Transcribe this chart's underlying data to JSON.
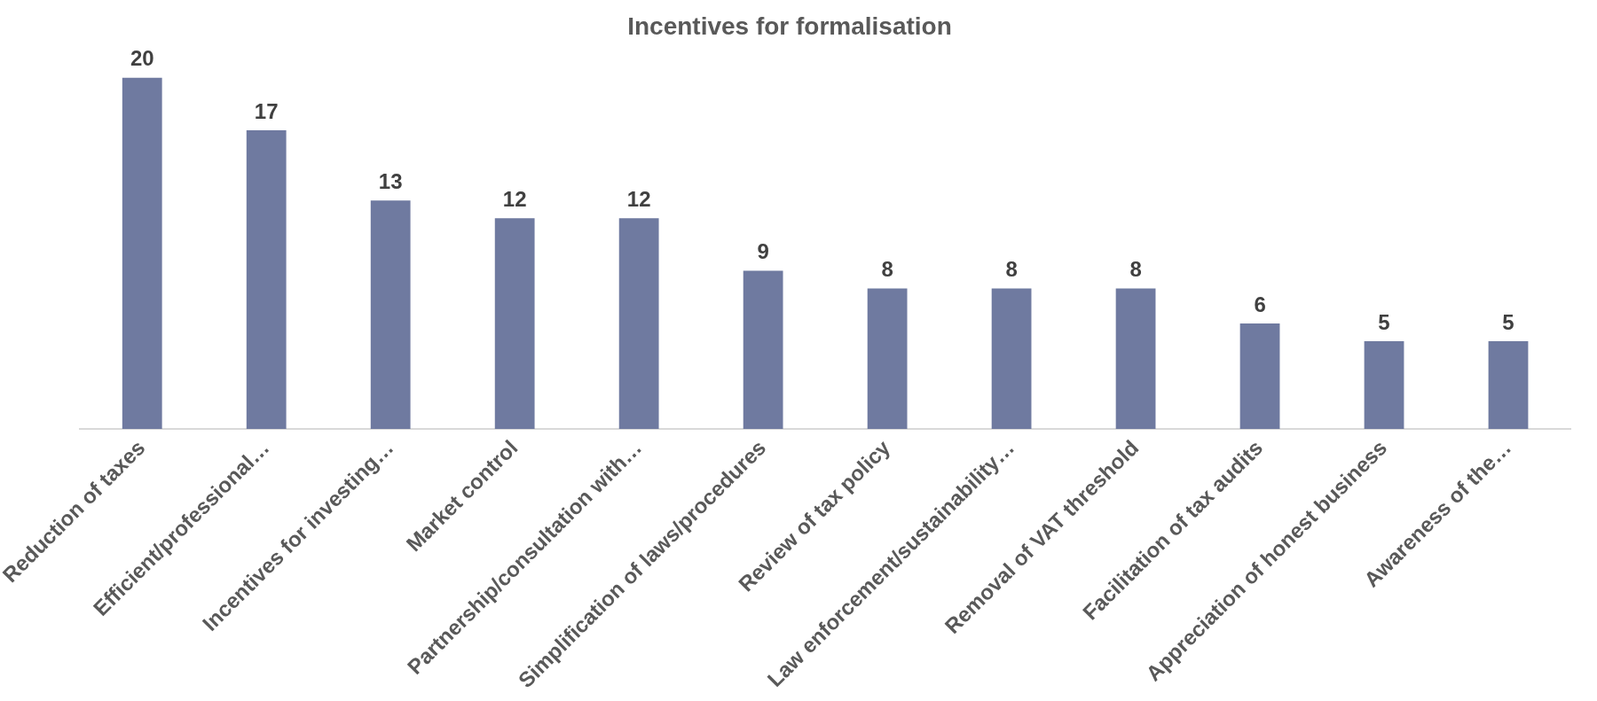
{
  "chart_data": {
    "type": "bar",
    "title": "Incentives for formalisation",
    "categories": [
      "Reduction of taxes",
      "Efficient/professional…",
      "Incentives for investing…",
      "Market control",
      "Partnership/consultation with…",
      "Simplification of laws/procedures",
      "Review of tax policy",
      "Law enforcement/sustainability…",
      "Removal of VAT threshold",
      "Facilitation of tax audits",
      "Appreciation of honest business",
      "Awareness of the…"
    ],
    "values": [
      20,
      17,
      13,
      12,
      12,
      9,
      8,
      8,
      8,
      6,
      5,
      5
    ],
    "color": "#6f7aa0",
    "data_labels": true,
    "tick_labels": "x",
    "grid": false,
    "legend": false
  }
}
